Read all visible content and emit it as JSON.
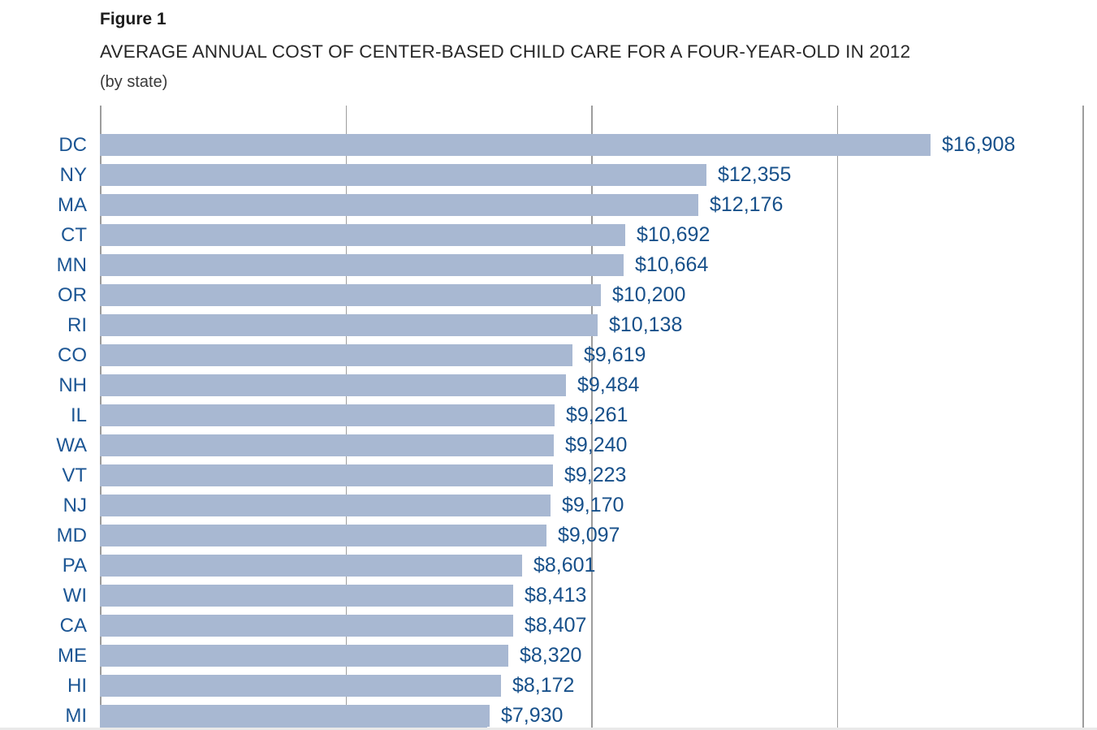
{
  "figure": {
    "label": "Figure 1",
    "title": "AVERAGE ANNUAL COST OF CENTER-BASED CHILD CARE FOR A FOUR-YEAR-OLD IN 2012",
    "subtitle": "(by state)"
  },
  "chart_data": {
    "type": "bar",
    "orientation": "horizontal",
    "title": "AVERAGE ANNUAL COST OF CENTER-BASED CHILD CARE FOR A FOUR-YEAR-OLD IN 2012",
    "subtitle": "(by state)",
    "xlabel": "",
    "ylabel": "",
    "categories": [
      "DC",
      "NY",
      "MA",
      "CT",
      "MN",
      "OR",
      "RI",
      "CO",
      "NH",
      "IL",
      "WA",
      "VT",
      "NJ",
      "MD",
      "PA",
      "WI",
      "CA",
      "ME",
      "HI",
      "MI"
    ],
    "values": [
      16908,
      12355,
      12176,
      10692,
      10664,
      10200,
      10138,
      9619,
      9484,
      9261,
      9240,
      9223,
      9170,
      9097,
      8601,
      8413,
      8407,
      8320,
      8172,
      7930
    ],
    "value_labels": [
      "$16,908",
      "$12,355",
      "$12,176",
      "$10,692",
      "$10,664",
      "$10,200",
      "$10,138",
      "$9,619",
      "$9,484",
      "$9,261",
      "$9,240",
      "$9,223",
      "$9,170",
      "$9,097",
      "$8,601",
      "$8,413",
      "$8,407",
      "$8,320",
      "$8,172",
      "$7,930"
    ],
    "xlim": [
      0,
      20000
    ],
    "gridline_values": [
      0,
      5000,
      10000,
      15000,
      20000
    ],
    "gridline_interval": 5000,
    "axis_tick_labels_visible": false,
    "legend": "none",
    "grid": "vertical",
    "bar_color": "#a8b8d2",
    "category_label_color": "#1c5694",
    "value_label_color": "#17508a",
    "grid_color": "#9d9d9d",
    "partial_next_bar_visible": true
  }
}
